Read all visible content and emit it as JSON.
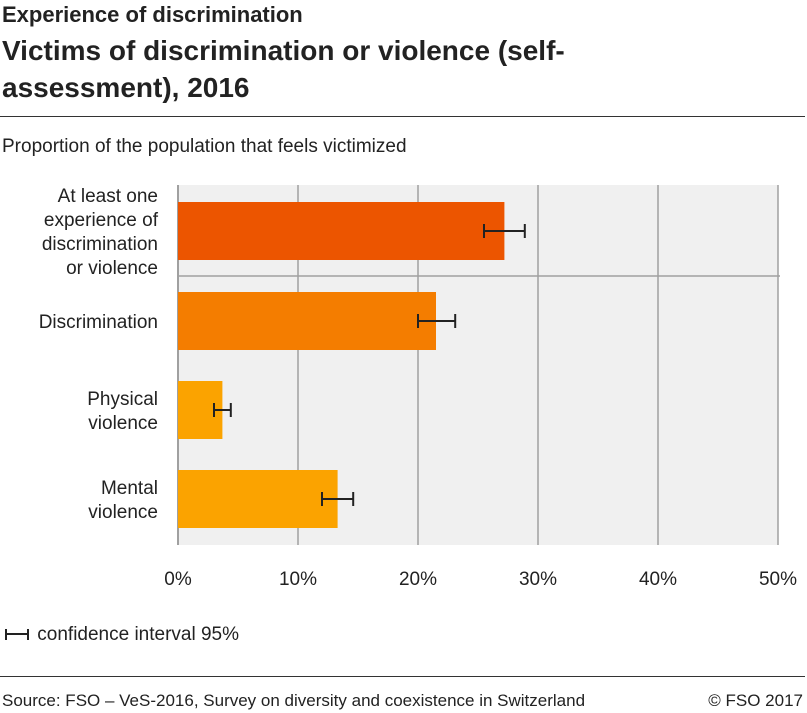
{
  "chart_data": {
    "type": "bar",
    "orientation": "horizontal",
    "supertitle": "Experience of discrimination",
    "title": "Victims of discrimination or violence (self-assessment), 2016",
    "subtitle": "Proportion of the population that feels victimized",
    "categories": [
      "At least one experience of discrimination or violence",
      "Discrimination",
      "Physical violence",
      "Mental violence"
    ],
    "category_lines": [
      [
        "At least one",
        "experience of",
        "discrimination",
        "or violence"
      ],
      [
        "Discrimination"
      ],
      [
        "Physical",
        "violence"
      ],
      [
        "Mental",
        "violence"
      ]
    ],
    "values": [
      27.2,
      21.5,
      3.7,
      13.3
    ],
    "ci_low": [
      25.5,
      20.0,
      3.0,
      12.0
    ],
    "ci_high": [
      28.9,
      23.1,
      4.4,
      14.6
    ],
    "colors": [
      "#EC5500",
      "#F47D00",
      "#FBA300",
      "#FBA300"
    ],
    "xlim": [
      0,
      50
    ],
    "xticks": [
      "0%",
      "10%",
      "20%",
      "30%",
      "40%",
      "50%"
    ],
    "grid": true,
    "legend": "confidence interval 95%",
    "legend_placement": "bottom-left",
    "source": "Source: FSO – VeS-2016, Survey on diversity and coexistence in Switzerland",
    "copyright": "© FSO 2017"
  }
}
